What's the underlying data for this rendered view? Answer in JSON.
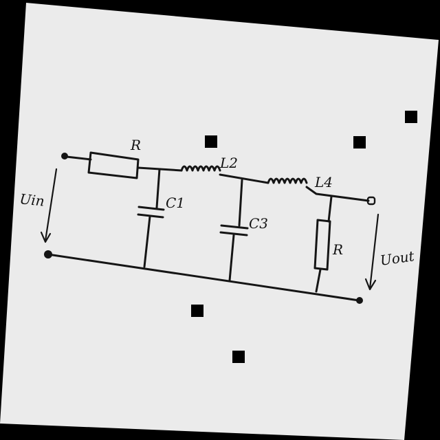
{
  "diagram": {
    "type": "circuit-schematic",
    "components": {
      "resistor_series": "R",
      "inductor_1": "L2",
      "inductor_2": "L4",
      "capacitor_1": "C1",
      "capacitor_2": "C3",
      "resistor_load": "R"
    },
    "ports": {
      "input": "Uin",
      "output": "Uout"
    }
  }
}
